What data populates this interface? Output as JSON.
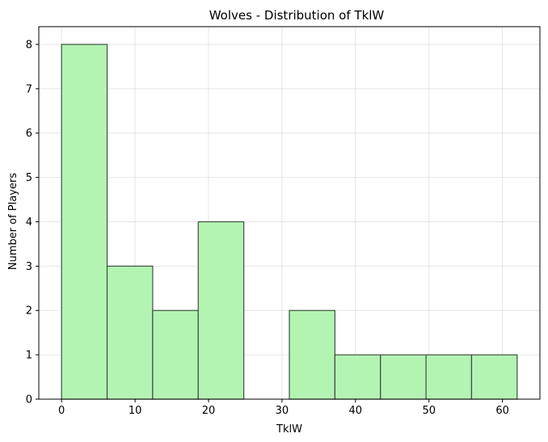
{
  "chart_data": {
    "type": "bar",
    "title": "Wolves - Distribution of TklW",
    "xlabel": "TklW",
    "ylabel": "Number of Players",
    "bin_edges": [
      0,
      6.2,
      12.4,
      18.6,
      24.8,
      31.0,
      37.2,
      43.4,
      49.6,
      55.8,
      62.0
    ],
    "values": [
      8,
      3,
      2,
      4,
      0,
      2,
      1,
      1,
      1,
      1
    ],
    "xlim": [
      -3.1,
      65.1
    ],
    "ylim": [
      0,
      8.4
    ],
    "xticks": [
      0,
      10,
      20,
      30,
      40,
      50,
      60
    ],
    "yticks": [
      0,
      1,
      2,
      3,
      4,
      5,
      6,
      7,
      8
    ],
    "grid": true,
    "bar_color": "#b3f4b3",
    "edge_color": "#3f4f3f"
  }
}
